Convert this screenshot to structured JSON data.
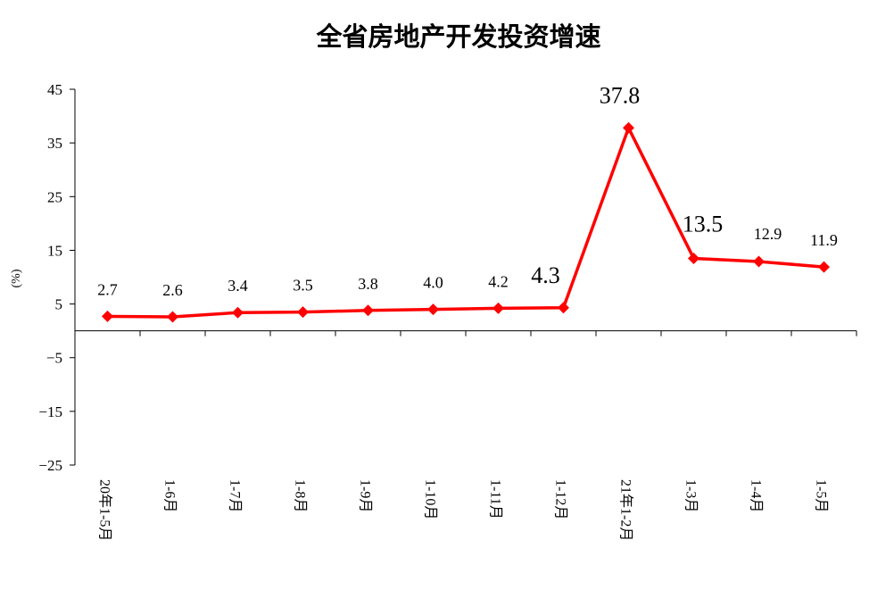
{
  "chart_data": {
    "type": "line",
    "title": "全省房地产开发投资增速",
    "ylabel": "(%)",
    "xlabel": "",
    "categories": [
      "20年1-5月",
      "1-6月",
      "1-7月",
      "1-8月",
      "1-9月",
      "1-10月",
      "1-11月",
      "1-12月",
      "21年1-2月",
      "1-3月",
      "1-4月",
      "1-5月"
    ],
    "series": [
      {
        "values": [
          2.7,
          2.6,
          3.4,
          3.5,
          3.8,
          4.0,
          4.2,
          4.3,
          37.8,
          13.5,
          12.9,
          11.9
        ],
        "labels": [
          "2.7",
          "2.6",
          "3.4",
          "3.5",
          "3.8",
          "4.0",
          "4.2",
          "4.3",
          "37.8",
          "13.5",
          "12.9",
          "11.9"
        ],
        "color": "#ff0000",
        "marker": "diamond"
      }
    ],
    "ylim": [
      -25,
      45
    ],
    "yticks": [
      45,
      35,
      25,
      15,
      5,
      -5,
      -15,
      -25
    ],
    "ytick_labels": [
      "45",
      "35",
      "25",
      "15",
      "5",
      "−5",
      "−15",
      "−25"
    ],
    "grid": false,
    "legend": "none"
  }
}
